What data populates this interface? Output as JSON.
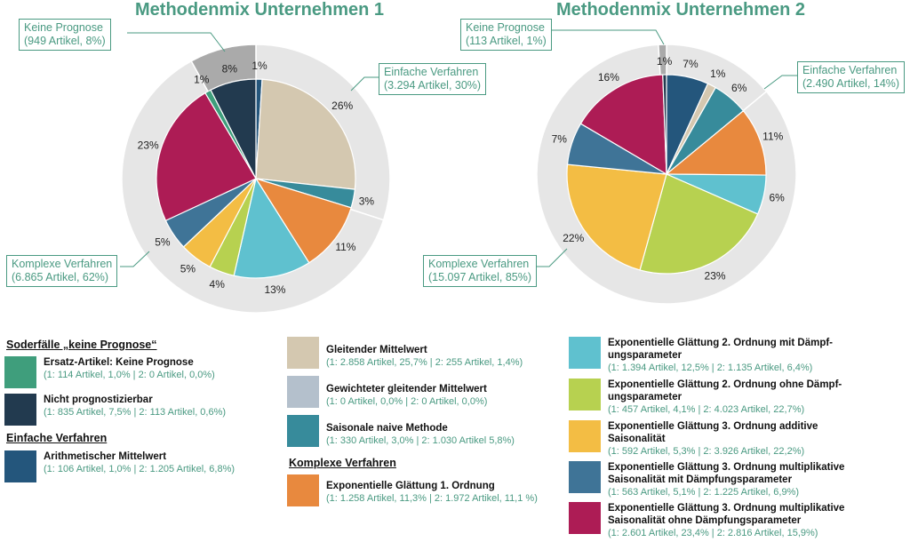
{
  "chart_data": [
    {
      "type": "pie",
      "title": "Methodenmix Unternehmen 1",
      "slices": [
        {
          "key": "arith",
          "value": 1.0,
          "label": "1%"
        },
        {
          "key": "gleit",
          "value": 25.7,
          "label": "26%"
        },
        {
          "key": "gew",
          "value": 0.0,
          "label": ""
        },
        {
          "key": "saison",
          "value": 3.0,
          "label": "3%"
        },
        {
          "key": "exp1",
          "value": 11.3,
          "label": "11%"
        },
        {
          "key": "exp2m",
          "value": 12.5,
          "label": "13%"
        },
        {
          "key": "exp2o",
          "value": 4.1,
          "label": "4%"
        },
        {
          "key": "exp3add",
          "value": 5.3,
          "label": "5%"
        },
        {
          "key": "exp3mit",
          "value": 5.1,
          "label": "5%"
        },
        {
          "key": "exp3ohne",
          "value": 23.4,
          "label": "23%"
        },
        {
          "key": "ersatz",
          "value": 1.0,
          "label": "1%"
        },
        {
          "key": "nicht",
          "value": 7.5,
          "label": "8%"
        }
      ],
      "outer_ring": [
        {
          "group": "einfach",
          "value": 30
        },
        {
          "group": "komplex",
          "value": 62
        },
        {
          "group": "keine",
          "value": 8
        }
      ],
      "callouts": [
        {
          "group": "keine",
          "label": "Keine Prognose",
          "detail": "(949 Artikel, 8%)"
        },
        {
          "group": "einfach",
          "label": "Einfache Verfahren",
          "detail": "(3.294 Artikel, 30%)"
        },
        {
          "group": "komplex",
          "label": "Komplexe Verfahren",
          "detail": "(6.865 Artikel, 62%)"
        }
      ]
    },
    {
      "type": "pie",
      "title": "Methodenmix Unternehmen 2",
      "slices": [
        {
          "key": "arith",
          "value": 6.8,
          "label": "7%"
        },
        {
          "key": "gleit",
          "value": 1.4,
          "label": "1%"
        },
        {
          "key": "gew",
          "value": 0.0,
          "label": ""
        },
        {
          "key": "saison",
          "value": 5.8,
          "label": "6%"
        },
        {
          "key": "exp1",
          "value": 11.1,
          "label": "11%"
        },
        {
          "key": "exp2m",
          "value": 6.4,
          "label": "6%"
        },
        {
          "key": "exp2o",
          "value": 22.7,
          "label": "23%"
        },
        {
          "key": "exp3add",
          "value": 22.2,
          "label": "22%"
        },
        {
          "key": "exp3mit",
          "value": 6.9,
          "label": "7%"
        },
        {
          "key": "exp3ohne",
          "value": 15.9,
          "label": "16%"
        },
        {
          "key": "ersatz",
          "value": 0.0,
          "label": ""
        },
        {
          "key": "nicht",
          "value": 0.6,
          "label": "1%"
        }
      ],
      "outer_ring": [
        {
          "group": "einfach",
          "value": 14
        },
        {
          "group": "komplex",
          "value": 85
        },
        {
          "group": "keine",
          "value": 1
        }
      ],
      "callouts": [
        {
          "group": "keine",
          "label": "Keine Prognose",
          "detail": "(113 Artikel, 1%)"
        },
        {
          "group": "einfach",
          "label": "Einfache Verfahren",
          "detail": "(2.490 Artikel, 14%)"
        },
        {
          "group": "komplex",
          "label": "Komplexe Verfahren",
          "detail": "(15.097 Artikel, 85%)"
        }
      ]
    }
  ],
  "colors": {
    "arith": "#24567c",
    "gleit": "#d4c8b0",
    "gew": "#b4c0cc",
    "saison": "#378b9b",
    "exp1": "#e8893e",
    "exp2m": "#5fc1cf",
    "exp2o": "#b7d150",
    "exp3add": "#f3bd44",
    "exp3mit": "#3f7497",
    "exp3ohne": "#ad1c55",
    "ersatz": "#3f9e7c",
    "nicht": "#223a4f",
    "keine_ring": "#aaaaaa",
    "ring": "#e6e6e6",
    "accent": "#4a9a82"
  },
  "legend": {
    "headings": {
      "sonder": "Soderfälle „keine Prognose“",
      "einfach": "Einfache Verfahren",
      "komplex": "Komplexe Verfahren"
    },
    "items": {
      "ersatz": {
        "name": "Ersatz-Artikel: Keine Prognose",
        "info": "(1: 114 Artikel, 1,0% | 2: 0 Artikel, 0,0%)"
      },
      "nicht": {
        "name": "Nicht prognostizierbar",
        "info": "(1: 835 Artikel, 7,5% | 2: 113 Artikel, 0,6%)"
      },
      "arith": {
        "name": "Arithmetischer Mittelwert",
        "info": "(1: 106 Artikel, 1,0% | 2: 1.205 Artikel, 6,8%)"
      },
      "gleit": {
        "name": "Gleitender Mittelwert",
        "info": "(1: 2.858 Artikel, 25,7% | 2: 255 Artikel, 1,4%)"
      },
      "gew": {
        "name": "Gewichteter gleitender Mittelwert",
        "info": "(1: 0 Artikel, 0,0% | 2: 0 Artikel, 0,0%)"
      },
      "saison": {
        "name": "Saisonale naive Methode",
        "info": "(1: 330 Artikel, 3,0% | 2: 1.030 Artikel 5,8%)"
      },
      "exp1": {
        "name": "Exponentielle Glättung 1. Ordnung",
        "info": "(1: 1.258 Artikel, 11,3% | 2: 1.972 Artikel, 11,1 %)"
      },
      "exp2m": {
        "name": "Exponentielle Glättung 2. Ordnung mit Dämpf-ungsparameter",
        "info": "(1: 1.394 Artikel, 12,5% | 2: 1.135 Artikel, 6,4%)"
      },
      "exp2o": {
        "name": "Exponentielle Glättung 2. Ordnung ohne Dämpf-ungsparameter",
        "info": "(1: 457 Artikel, 4,1% | 2: 4.023 Artikel, 22,7%)"
      },
      "exp3add": {
        "name": "Exponentielle Glättung 3. Ordnung additive Saisonalität",
        "info": "(1: 592 Artikel, 5,3% | 2: 3.926 Artikel, 22,2%)"
      },
      "exp3mit": {
        "name": "Exponentielle Glättung 3. Ordnung multiplikative Saisonalität mit Dämpfungsparameter",
        "info": "(1: 563 Artikel, 5,1% | 2: 1.225 Artikel, 6,9%)"
      },
      "exp3ohne": {
        "name": "Exponentielle Glättung 3. Ordnung multiplikative Saisonalität ohne Dämpfungsparameter",
        "info": "(1: 2.601 Artikel, 23,4% | 2: 2.816 Artikel, 15,9%)"
      }
    }
  }
}
